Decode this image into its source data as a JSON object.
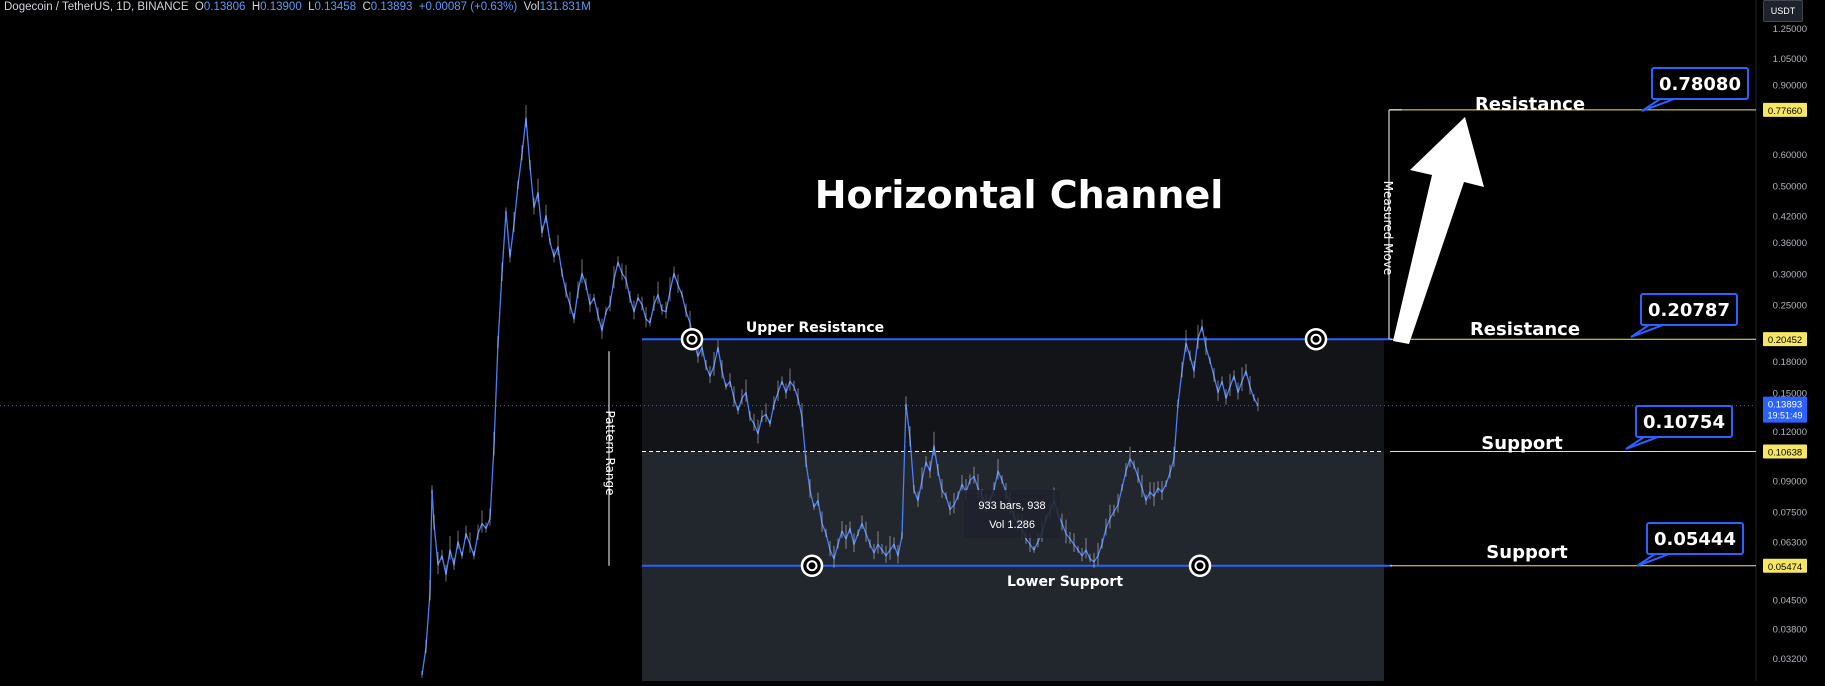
{
  "header": {
    "symbol": "Dogecoin / TetherUS, 1D, BINANCE",
    "open_label": "O",
    "open": "0.13806",
    "high_label": "H",
    "high": "0.13900",
    "low_label": "L",
    "low": "0.13458",
    "close_label": "C",
    "close": "0.13893",
    "change": "+0.00087 (+0.63%)",
    "vol_label": "Vol",
    "vol": "131.831M"
  },
  "currency_button": "USDT",
  "colors": {
    "price_line": "#4a7ff5",
    "level_line": "#2962ff",
    "target_line": "#f5e663",
    "box_fill": "#131418",
    "box_fill_lower": "#22262d",
    "label_border": "#2962ff",
    "current_price_bg": "#2962ff"
  },
  "chart_data": {
    "type": "line",
    "scale": "log",
    "ylim": [
      0.028,
      1.3
    ],
    "y_ticks": [
      "1.25000",
      "1.05000",
      "0.90000",
      "0.60000",
      "0.50000",
      "0.42000",
      "0.36000",
      "0.30000",
      "0.25000",
      "0.18000",
      "0.15000",
      "0.12000",
      "0.09000",
      "0.07500",
      "0.06300",
      "0.04500",
      "0.03800",
      "0.03200"
    ],
    "y_tick_values": [
      1.25,
      1.05,
      0.9,
      0.6,
      0.5,
      0.42,
      0.36,
      0.3,
      0.25,
      0.18,
      0.15,
      0.12,
      0.09,
      0.075,
      0.063,
      0.045,
      0.038,
      0.032
    ],
    "title": "Horizontal Channel",
    "price_badges": [
      {
        "label": "0.77660",
        "value": 0.7766,
        "style": "yellow"
      },
      {
        "label": "0.20452",
        "value": 0.20452,
        "style": "yellow"
      },
      {
        "label": "0.10638",
        "value": 0.10638,
        "style": "yellow"
      },
      {
        "label": "0.05474",
        "value": 0.05474,
        "style": "yellow"
      }
    ],
    "current_price": {
      "label": "0.13893",
      "countdown": "19:51:49",
      "value": 0.13893
    },
    "levels": {
      "upper_resistance": 0.2045,
      "lower_support": 0.05474,
      "midline": 0.10638,
      "target": 0.7766
    },
    "callouts": [
      {
        "title": "Resistance",
        "value_label": "0.78080",
        "value": 0.7808
      },
      {
        "title": "Resistance",
        "value_label": "0.20787",
        "value": 0.20787
      },
      {
        "title": "Support",
        "value_label": "0.10754",
        "value": 0.10754
      },
      {
        "title": "Support",
        "value_label": "0.05444",
        "value": 0.05444
      }
    ],
    "annotations": {
      "upper_resistance": "Upper Resistance",
      "lower_support": "Lower Support",
      "pattern_range": "Pattern Range",
      "measured_move": "Measured Move",
      "range_info_1": "933 bars, 938",
      "range_info_2": "Vol 1.286"
    },
    "series": [
      {
        "points": [
          [
            0,
            0.029
          ],
          [
            2,
            0.034
          ],
          [
            4,
            0.047
          ],
          [
            5,
            0.085
          ],
          [
            6,
            0.07
          ],
          [
            8,
            0.055
          ],
          [
            10,
            0.058
          ],
          [
            12,
            0.052
          ],
          [
            14,
            0.06
          ],
          [
            16,
            0.055
          ],
          [
            18,
            0.063
          ],
          [
            20,
            0.058
          ],
          [
            22,
            0.066
          ],
          [
            24,
            0.062
          ],
          [
            26,
            0.058
          ],
          [
            28,
            0.066
          ],
          [
            30,
            0.07
          ],
          [
            32,
            0.068
          ],
          [
            34,
            0.072
          ],
          [
            36,
            0.11
          ],
          [
            38,
            0.2
          ],
          [
            40,
            0.3
          ],
          [
            42,
            0.43
          ],
          [
            44,
            0.33
          ],
          [
            46,
            0.4
          ],
          [
            48,
            0.5
          ],
          [
            50,
            0.6
          ],
          [
            52,
            0.74
          ],
          [
            54,
            0.56
          ],
          [
            56,
            0.44
          ],
          [
            58,
            0.48
          ],
          [
            60,
            0.38
          ],
          [
            62,
            0.42
          ],
          [
            64,
            0.36
          ],
          [
            66,
            0.33
          ],
          [
            68,
            0.35
          ],
          [
            70,
            0.3
          ],
          [
            72,
            0.27
          ],
          [
            74,
            0.25
          ],
          [
            76,
            0.23
          ],
          [
            78,
            0.27
          ],
          [
            80,
            0.3
          ],
          [
            82,
            0.28
          ],
          [
            84,
            0.25
          ],
          [
            86,
            0.26
          ],
          [
            88,
            0.235
          ],
          [
            90,
            0.215
          ],
          [
            92,
            0.24
          ],
          [
            94,
            0.25
          ],
          [
            96,
            0.29
          ],
          [
            98,
            0.32
          ],
          [
            100,
            0.3
          ],
          [
            102,
            0.29
          ],
          [
            104,
            0.26
          ],
          [
            106,
            0.24
          ],
          [
            108,
            0.26
          ],
          [
            110,
            0.25
          ],
          [
            112,
            0.23
          ],
          [
            114,
            0.225
          ],
          [
            116,
            0.25
          ],
          [
            118,
            0.265
          ],
          [
            120,
            0.242
          ],
          [
            122,
            0.24
          ],
          [
            124,
            0.27
          ],
          [
            126,
            0.3
          ],
          [
            128,
            0.28
          ],
          [
            130,
            0.265
          ],
          [
            132,
            0.24
          ],
          [
            134,
            0.225
          ],
          [
            136,
            0.2
          ],
          [
            138,
            0.185
          ],
          [
            140,
            0.195
          ],
          [
            142,
            0.175
          ],
          [
            144,
            0.165
          ],
          [
            146,
            0.175
          ],
          [
            148,
            0.195
          ],
          [
            150,
            0.17
          ],
          [
            152,
            0.155
          ],
          [
            154,
            0.16
          ],
          [
            156,
            0.145
          ],
          [
            158,
            0.135
          ],
          [
            160,
            0.145
          ],
          [
            162,
            0.15
          ],
          [
            164,
            0.13
          ],
          [
            166,
            0.125
          ],
          [
            168,
            0.118
          ],
          [
            170,
            0.13
          ],
          [
            172,
            0.132
          ],
          [
            174,
            0.125
          ],
          [
            176,
            0.14
          ],
          [
            178,
            0.15
          ],
          [
            180,
            0.16
          ],
          [
            182,
            0.15
          ],
          [
            184,
            0.16
          ],
          [
            186,
            0.155
          ],
          [
            188,
            0.145
          ],
          [
            190,
            0.13
          ],
          [
            192,
            0.1
          ],
          [
            194,
            0.085
          ],
          [
            196,
            0.077
          ],
          [
            198,
            0.08
          ],
          [
            200,
            0.07
          ],
          [
            202,
            0.066
          ],
          [
            204,
            0.06
          ],
          [
            206,
            0.057
          ],
          [
            208,
            0.062
          ],
          [
            210,
            0.067
          ],
          [
            212,
            0.064
          ],
          [
            214,
            0.068
          ],
          [
            216,
            0.062
          ],
          [
            218,
            0.066
          ],
          [
            220,
            0.07
          ],
          [
            222,
            0.066
          ],
          [
            224,
            0.062
          ],
          [
            226,
            0.059
          ],
          [
            228,
            0.062
          ],
          [
            230,
            0.06
          ],
          [
            232,
            0.058
          ],
          [
            234,
            0.06
          ],
          [
            236,
            0.062
          ],
          [
            238,
            0.058
          ],
          [
            240,
            0.065
          ],
          [
            242,
            0.14
          ],
          [
            244,
            0.115
          ],
          [
            246,
            0.085
          ],
          [
            248,
            0.08
          ],
          [
            250,
            0.09
          ],
          [
            252,
            0.1
          ],
          [
            254,
            0.095
          ],
          [
            256,
            0.11
          ],
          [
            258,
            0.095
          ],
          [
            260,
            0.085
          ],
          [
            262,
            0.082
          ],
          [
            264,
            0.076
          ],
          [
            266,
            0.078
          ],
          [
            268,
            0.082
          ],
          [
            270,
            0.088
          ],
          [
            272,
            0.084
          ],
          [
            274,
            0.09
          ],
          [
            276,
            0.092
          ],
          [
            278,
            0.086
          ],
          [
            280,
            0.082
          ],
          [
            282,
            0.078
          ],
          [
            284,
            0.08
          ],
          [
            286,
            0.085
          ],
          [
            288,
            0.095
          ],
          [
            290,
            0.09
          ],
          [
            292,
            0.084
          ],
          [
            294,
            0.078
          ],
          [
            296,
            0.073
          ],
          [
            298,
            0.07
          ],
          [
            300,
            0.068
          ],
          [
            302,
            0.064
          ],
          [
            304,
            0.062
          ],
          [
            306,
            0.06
          ],
          [
            308,
            0.063
          ],
          [
            310,
            0.066
          ],
          [
            312,
            0.072
          ],
          [
            314,
            0.075
          ],
          [
            316,
            0.08
          ],
          [
            318,
            0.074
          ],
          [
            320,
            0.07
          ],
          [
            322,
            0.066
          ],
          [
            324,
            0.064
          ],
          [
            326,
            0.062
          ],
          [
            328,
            0.06
          ],
          [
            330,
            0.058
          ],
          [
            332,
            0.06
          ],
          [
            334,
            0.057
          ],
          [
            336,
            0.056
          ],
          [
            338,
            0.058
          ],
          [
            340,
            0.062
          ],
          [
            342,
            0.068
          ],
          [
            344,
            0.072
          ],
          [
            346,
            0.075
          ],
          [
            348,
            0.078
          ],
          [
            350,
            0.086
          ],
          [
            352,
            0.095
          ],
          [
            354,
            0.102
          ],
          [
            356,
            0.098
          ],
          [
            358,
            0.092
          ],
          [
            360,
            0.086
          ],
          [
            362,
            0.08
          ],
          [
            364,
            0.084
          ],
          [
            366,
            0.082
          ],
          [
            368,
            0.086
          ],
          [
            370,
            0.084
          ],
          [
            372,
            0.088
          ],
          [
            374,
            0.094
          ],
          [
            376,
            0.102
          ],
          [
            378,
            0.14
          ],
          [
            380,
            0.17
          ],
          [
            382,
            0.2
          ],
          [
            384,
            0.185
          ],
          [
            386,
            0.17
          ],
          [
            388,
            0.205
          ],
          [
            390,
            0.22
          ],
          [
            392,
            0.195
          ],
          [
            394,
            0.18
          ],
          [
            396,
            0.165
          ],
          [
            398,
            0.15
          ],
          [
            400,
            0.16
          ],
          [
            402,
            0.145
          ],
          [
            404,
            0.155
          ],
          [
            406,
            0.165
          ],
          [
            408,
            0.15
          ],
          [
            410,
            0.16
          ],
          [
            412,
            0.17
          ],
          [
            414,
            0.155
          ],
          [
            416,
            0.145
          ],
          [
            418,
            0.1389
          ]
        ]
      }
    ]
  }
}
